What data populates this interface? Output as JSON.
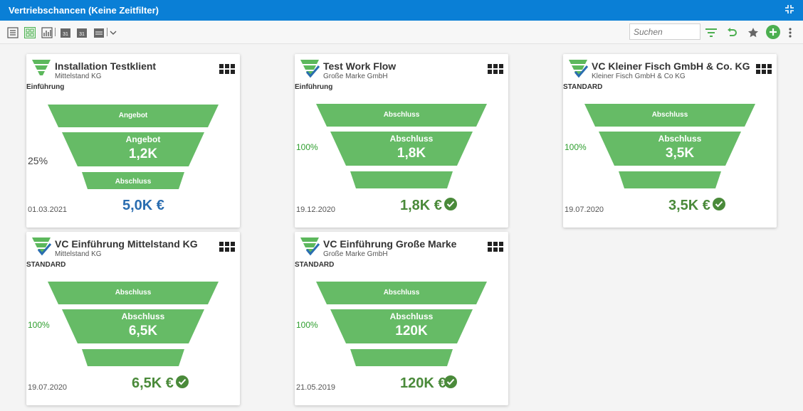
{
  "window": {
    "title": "Vertriebschancen (Keine Zeitfilter)"
  },
  "toolbar": {
    "search_placeholder": "Suchen",
    "icons": [
      "list-view-icon",
      "tile-view-icon",
      "chart-view-icon",
      "calendar-day-icon",
      "calendar-week-icon",
      "calendar-month-icon",
      "filter-icon",
      "undo-icon",
      "star-icon",
      "add-icon",
      "more-icon"
    ],
    "colors": {
      "green": "#4caf50",
      "accent": "#0a7fd6"
    }
  },
  "cards": [
    {
      "title": "Installation Testklient",
      "subtitle": "Mittelstand KG",
      "stage": "Einführung",
      "probability": "25%",
      "top_label": "Angebot",
      "mid_label": "Angebot",
      "mid_value": "1,2K",
      "bottom_label": "Abschluss",
      "date": "01.03.2021",
      "amount": "5,0K €",
      "won": false
    },
    {
      "title": "Test Work Flow",
      "subtitle": "Große Marke GmbH",
      "stage": "Einführung",
      "probability": "100%",
      "top_label": "Abschluss",
      "mid_label": "Abschluss",
      "mid_value": "1,8K",
      "bottom_label": "",
      "date": "19.12.2020",
      "amount": "1,8K €",
      "won": true
    },
    {
      "title": "VC Kleiner Fisch GmbH & Co. KG",
      "subtitle": "Kleiner Fisch GmbH & Co KG",
      "stage": "STANDARD",
      "probability": "100%",
      "top_label": "Abschluss",
      "mid_label": "Abschluss",
      "mid_value": "3,5K",
      "bottom_label": "",
      "date": "19.07.2020",
      "amount": "3,5K €",
      "won": true
    },
    {
      "title": "VC Einführung Mittelstand KG",
      "subtitle": "Mittelstand KG",
      "stage": "STANDARD",
      "probability": "100%",
      "top_label": "Abschluss",
      "mid_label": "Abschluss",
      "mid_value": "6,5K",
      "bottom_label": "",
      "date": "19.07.2020",
      "amount": "6,5K €",
      "won": true
    },
    {
      "title": "VC Einführung Große Marke",
      "subtitle": "Große Marke GmbH",
      "stage": "STANDARD",
      "probability": "100%",
      "top_label": "Abschluss",
      "mid_label": "Abschluss",
      "mid_value": "120K",
      "bottom_label": "",
      "date": "21.05.2019",
      "amount": "120K €",
      "won": true
    }
  ]
}
